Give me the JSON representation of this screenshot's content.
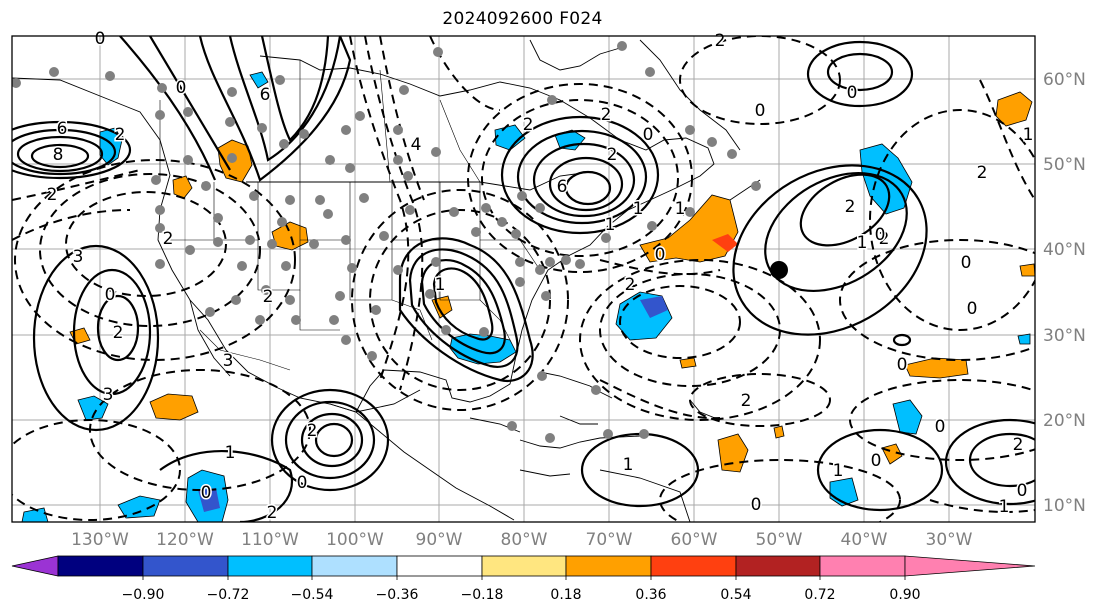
{
  "title": "2024092600 F024",
  "longitude_labels": [
    "130°W",
    "120°W",
    "110°W",
    "100°W",
    "90°W",
    "80°W",
    "70°W",
    "60°W",
    "50°W",
    "40°W",
    "30°W"
  ],
  "latitude_labels": [
    "60°N",
    "50°N",
    "40°N",
    "30°N",
    "20°N",
    "10°N"
  ],
  "colorbar": {
    "ticks": [
      "−0.90",
      "−0.72",
      "−0.54",
      "−0.36",
      "−0.18",
      "0.18",
      "0.36",
      "0.54",
      "0.72",
      "0.90"
    ],
    "colors": [
      "#9b33d4",
      "#00007f",
      "#3355cc",
      "#00bfff",
      "#aee0ff",
      "#ffffff",
      "#ffe680",
      "#ffa000",
      "#ff4010",
      "#b22222",
      "#ff80b0"
    ],
    "extend": "both"
  },
  "contour_labels": [
    "0",
    "6",
    "8",
    "2",
    "0",
    "6",
    "2",
    "3",
    "2",
    "3",
    "0",
    "2",
    "3",
    "2",
    "1",
    "2",
    "0",
    "0",
    "2",
    "1",
    "4",
    "6",
    "2",
    "1",
    "2",
    "1",
    "0",
    "2",
    "2",
    "0",
    "1",
    "2",
    "0",
    "2",
    "1",
    "2",
    "0",
    "0",
    "1",
    "2",
    "0",
    "1",
    "0",
    "2",
    "0",
    "1",
    "0",
    "0",
    "2",
    "1",
    "0",
    "0"
  ]
}
